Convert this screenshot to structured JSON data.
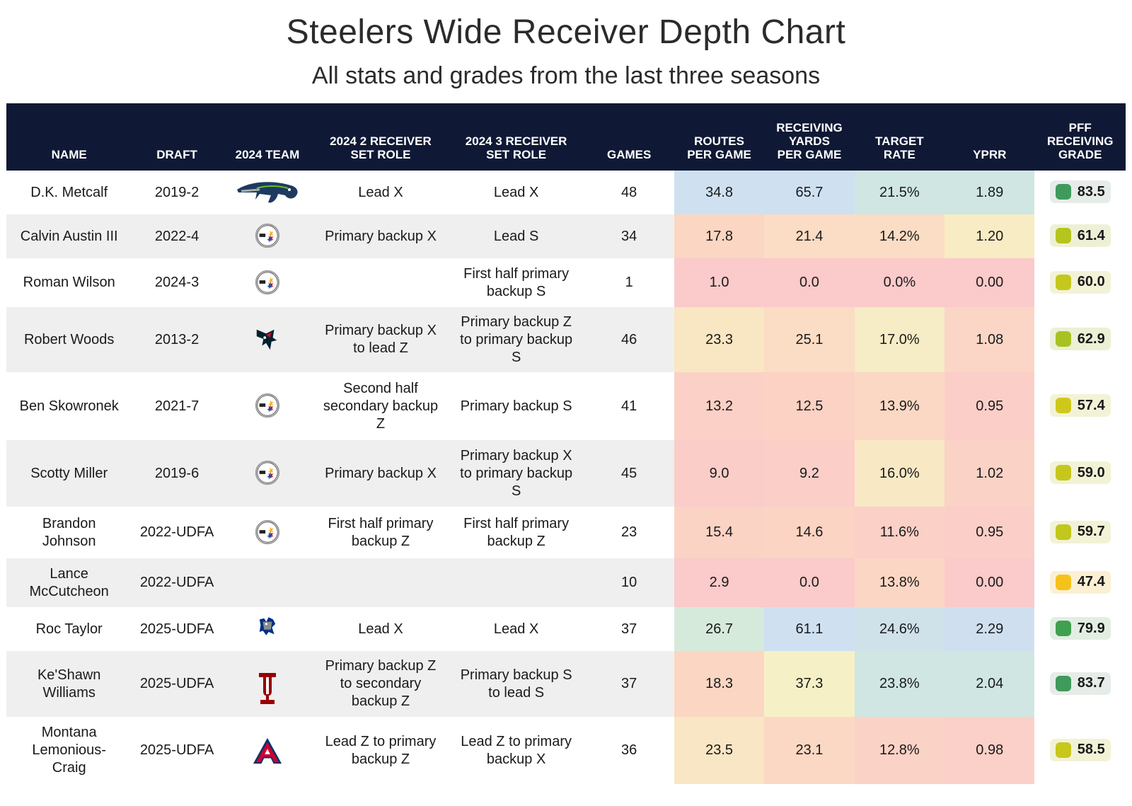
{
  "title": "Steelers Wide Receiver Depth Chart",
  "subtitle": "All stats and grades from the last three seasons",
  "colors": {
    "header_bg": "#0f1935",
    "stat_blue": "#cfe0f1",
    "stat_teal": "#cfe6e2",
    "stat_green": "#d6eadb",
    "stat_yellow": "#f8efc8",
    "stat_peach": "#fbd6c2",
    "stat_red": "#fbcaca",
    "grade_dark_green": "#3f9a5b",
    "grade_green": "#43a84f",
    "grade_lime": "#a5c222",
    "grade_yellow": "#c9c81a",
    "grade_orange": "#f5c21b"
  },
  "chart_data": {
    "type": "table",
    "columns": [
      "NAME",
      "DRAFT",
      "2024 TEAM",
      "2024 2 RECEIVER\nSET ROLE",
      "2024 3 RECEIVER\nSET ROLE",
      "GAMES",
      "ROUTES\nPER GAME",
      "RECEIVING\nYARDS\nPER GAME",
      "TARGET\nRATE",
      "YPRR",
      "PFF\nRECEIVING\nGRADE"
    ],
    "rows": [
      {
        "name": "D.K. Metcalf",
        "draft": "2019-2",
        "team_logo": "seahawks-logo",
        "role2": "Lead X",
        "role3": "Lead X",
        "games": "48",
        "routes": "34.8",
        "yards": "65.7",
        "target": "21.5%",
        "yprr": "1.89",
        "grade": "83.5",
        "stat_colors": [
          "#cfe0f1",
          "#cfe0f1",
          "#cfe6e2",
          "#cfe6e2"
        ],
        "grade_color": "#3f9a5b",
        "badge_bg": "#e6ece8"
      },
      {
        "name": "Calvin Austin III",
        "draft": "2022-4",
        "team_logo": "steelers-logo",
        "role2": "Primary backup X",
        "role3": "Lead S",
        "games": "34",
        "routes": "17.8",
        "yards": "21.4",
        "target": "14.2%",
        "yprr": "1.20",
        "grade": "61.4",
        "stat_colors": [
          "#fbd6c2",
          "#fbdcc4",
          "#fbdcc4",
          "#f8ecc4"
        ],
        "grade_color": "#b5c51d",
        "badge_bg": "#eef0d6"
      },
      {
        "name": "Roman Wilson",
        "draft": "2024-3",
        "team_logo": "steelers-logo",
        "role2": "",
        "role3": "First half primary\nbackup S",
        "games": "1",
        "routes": "1.0",
        "yards": "0.0",
        "target": "0.0%",
        "yprr": "0.00",
        "grade": "60.0",
        "stat_colors": [
          "#fbcaca",
          "#fbcaca",
          "#fbcaca",
          "#fbcaca"
        ],
        "grade_color": "#c4c81c",
        "badge_bg": "#f2f2d8"
      },
      {
        "name": "Robert Woods",
        "draft": "2013-2",
        "team_logo": "texans-logo",
        "role2": "Primary backup X\nto lead Z",
        "role3": "Primary backup Z\nto primary backup\nS",
        "games": "46",
        "routes": "23.3",
        "yards": "25.1",
        "target": "17.0%",
        "yprr": "1.08",
        "grade": "62.9",
        "stat_colors": [
          "#f9e6c2",
          "#fbdcc4",
          "#f6ecc6",
          "#fbd6c6"
        ],
        "grade_color": "#a9c222",
        "badge_bg": "#ecf0d4"
      },
      {
        "name": "Ben Skowronek",
        "draft": "2021-7",
        "team_logo": "steelers-logo",
        "role2": "Second half\nsecondary backup\nZ",
        "role3": "Primary backup S",
        "games": "41",
        "routes": "13.2",
        "yards": "12.5",
        "target": "13.9%",
        "yprr": "0.95",
        "grade": "57.4",
        "stat_colors": [
          "#fbd0c6",
          "#fbd2c4",
          "#fbd8c4",
          "#fbcfc8"
        ],
        "grade_color": "#cfc81b",
        "badge_bg": "#f4f2d6"
      },
      {
        "name": "Scotty Miller",
        "draft": "2019-6",
        "team_logo": "steelers-logo",
        "role2": "Primary backup X",
        "role3": "Primary backup X\nto primary backup\nS",
        "games": "45",
        "routes": "9.0",
        "yards": "9.2",
        "target": "16.0%",
        "yprr": "1.02",
        "grade": "59.0",
        "stat_colors": [
          "#fbcdc8",
          "#fbcec8",
          "#f8e8c4",
          "#fbd2c6"
        ],
        "grade_color": "#c6c71c",
        "badge_bg": "#f2f2d6"
      },
      {
        "name": "Brandon\nJohnson",
        "draft": "2022-UDFA",
        "team_logo": "steelers-logo",
        "role2": "First half primary\nbackup Z",
        "role3": "First half primary\nbackup Z",
        "games": "23",
        "routes": "15.4",
        "yards": "14.6",
        "target": "11.6%",
        "yprr": "0.95",
        "grade": "59.7",
        "stat_colors": [
          "#fbd3c4",
          "#fbd4c4",
          "#fbd0c6",
          "#fbcfc8"
        ],
        "grade_color": "#c2c71c",
        "badge_bg": "#f2f2d6"
      },
      {
        "name": "Lance\nMcCutcheon",
        "draft": "2022-UDFA",
        "team_logo": "",
        "role2": "",
        "role3": "",
        "games": "10",
        "routes": "2.9",
        "yards": "0.0",
        "target": "13.8%",
        "yprr": "0.00",
        "grade": "47.4",
        "stat_colors": [
          "#fbcaca",
          "#fbcaca",
          "#fbd6c4",
          "#fbcaca"
        ],
        "grade_color": "#f5c21b",
        "badge_bg": "#fbf0d4"
      },
      {
        "name": "Roc Taylor",
        "draft": "2025-UDFA",
        "team_logo": "memphis-logo",
        "role2": "Lead X",
        "role3": "Lead X",
        "games": "37",
        "routes": "26.7",
        "yards": "61.1",
        "target": "24.6%",
        "yprr": "2.29",
        "grade": "79.9",
        "stat_colors": [
          "#d6eadb",
          "#cfe0f1",
          "#cfe2ea",
          "#cfdff0"
        ],
        "grade_color": "#3fa04f",
        "badge_bg": "#e2eee2"
      },
      {
        "name": "Ke'Shawn\nWilliams",
        "draft": "2025-UDFA",
        "team_logo": "indiana-logo",
        "role2": "Primary backup Z\nto secondary\nbackup Z",
        "role3": "Primary backup S\nto lead S",
        "games": "37",
        "routes": "18.3",
        "yards": "37.3",
        "target": "23.8%",
        "yprr": "2.04",
        "grade": "83.7",
        "stat_colors": [
          "#fbd6c2",
          "#f6f0c6",
          "#cfe6e2",
          "#cfe6e2"
        ],
        "grade_color": "#3f9a5b",
        "badge_bg": "#e6ece8"
      },
      {
        "name": "Montana\nLemonious-\nCraig",
        "draft": "2025-UDFA",
        "team_logo": "arizona-logo",
        "role2": "Lead Z to primary\nbackup Z",
        "role3": "Lead Z to primary\nbackup X",
        "games": "36",
        "routes": "23.5",
        "yards": "23.1",
        "target": "12.8%",
        "yprr": "0.98",
        "grade": "58.5",
        "stat_colors": [
          "#f8e6c4",
          "#fbd8c4",
          "#fbd2c6",
          "#fbd0c8"
        ],
        "grade_color": "#c8c71c",
        "badge_bg": "#f2f2d6"
      }
    ]
  }
}
